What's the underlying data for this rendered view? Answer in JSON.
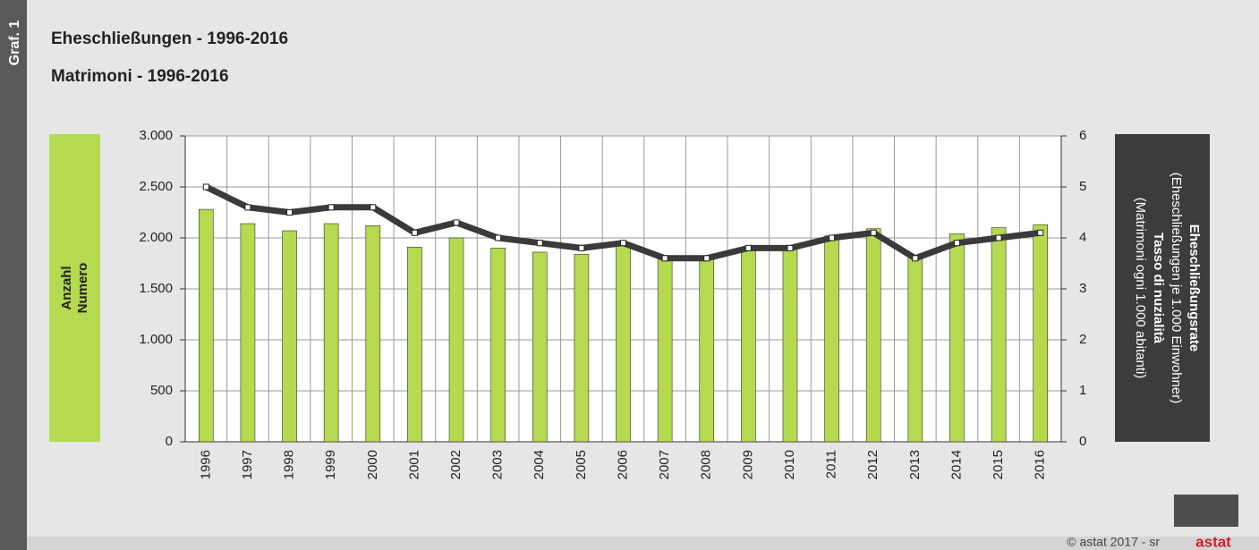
{
  "chart_data": {
    "type": "bar",
    "side_label": "Graf. 1",
    "title": "Eheschließungen - 1996-2016",
    "subtitle": "Matrimoni - 1996-2016",
    "y_label": [
      "Anzahl",
      "Numero"
    ],
    "y2_label": [
      "Eheschließungsrate",
      "(Eheschließungen je 1.000 Einwohner)",
      "Tasso di nuzialità",
      "(Matrimoni ogni 1.000 abitanti)"
    ],
    "categories": [
      "1996",
      "1997",
      "1998",
      "1999",
      "2000",
      "2001",
      "2002",
      "2003",
      "2004",
      "2005",
      "2006",
      "2007",
      "2008",
      "2009",
      "2010",
      "2011",
      "2012",
      "2013",
      "2014",
      "2015",
      "2016"
    ],
    "series": [
      {
        "type": "bar",
        "color": "#b5d94f",
        "values": [
          2280,
          2140,
          2070,
          2140,
          2120,
          1910,
          2000,
          1900,
          1860,
          1840,
          1930,
          1790,
          1790,
          1890,
          1890,
          2020,
          2090,
          1810,
          2040,
          2100,
          2130
        ]
      },
      {
        "type": "line",
        "axis": "y2",
        "color": "#3a3a3a",
        "values": [
          5.0,
          4.6,
          4.5,
          4.6,
          4.6,
          4.1,
          4.3,
          4.0,
          3.9,
          3.8,
          3.9,
          3.6,
          3.6,
          3.8,
          3.8,
          4.0,
          4.1,
          3.6,
          3.9,
          4.0,
          4.1
        ]
      }
    ],
    "ylim": [
      0,
      3000
    ],
    "yticks": [
      0,
      500,
      {
        "value": 1000,
        "label": "1.000"
      },
      {
        "value": 1500,
        "label": "1.500"
      },
      {
        "value": 2000,
        "label": "2.000"
      },
      {
        "value": 2500,
        "label": "2.500"
      },
      {
        "value": 3000,
        "label": "3.000"
      }
    ],
    "y2lim": [
      0,
      6
    ],
    "y2ticks": [
      0,
      1,
      2,
      3,
      4,
      5,
      6
    ],
    "grid": true,
    "credit": "© astat 2017 - sr",
    "logo": "astat"
  }
}
